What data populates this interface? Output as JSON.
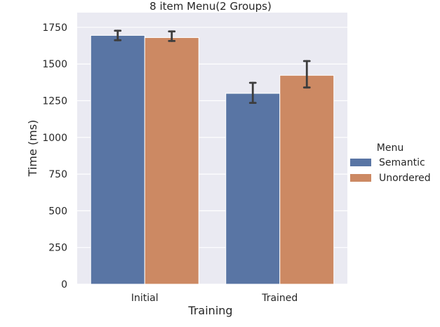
{
  "chart_data": {
    "type": "bar",
    "title": "8 item Menu(2 Groups)",
    "xlabel": "Training",
    "ylabel": "Time (ms)",
    "categories": [
      "Initial",
      "Trained"
    ],
    "series": [
      {
        "name": "Semantic",
        "color": "#5975a4",
        "values": [
          1695,
          1300
        ],
        "error_low": [
          1662,
          1235
        ],
        "error_high": [
          1727,
          1372
        ]
      },
      {
        "name": "Unordered",
        "color": "#cc8963",
        "values": [
          1680,
          1423
        ],
        "error_low": [
          1657,
          1340
        ],
        "error_high": [
          1722,
          1520
        ]
      }
    ],
    "ylim": [
      0,
      1850
    ],
    "yticks": [
      0,
      250,
      500,
      750,
      1000,
      1250,
      1500,
      1750
    ],
    "ytick_labels": [
      "0",
      "250",
      "500",
      "750",
      "1000",
      "1250",
      "1500",
      "1750"
    ],
    "grid": true,
    "legend": {
      "title": "Menu",
      "placement": "right"
    }
  }
}
